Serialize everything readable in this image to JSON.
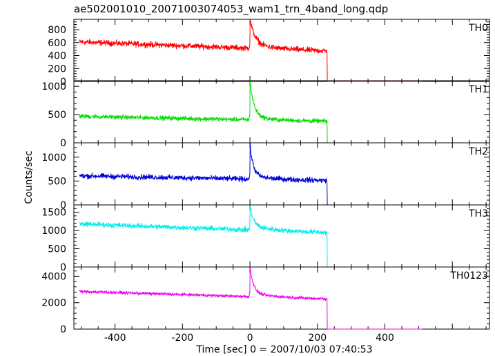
{
  "chart_data": {
    "type": "line",
    "title": "ae502001010_20071003074053_wam1_trn_4band_long.qdp",
    "xlabel": "Time [sec] 0 = 2007/10/03 07:40:53",
    "ylabel": "Counts/sec",
    "xlim": [
      -522,
      710
    ],
    "x_ticks": [
      -400,
      -200,
      0,
      200,
      400
    ],
    "grid": false,
    "legend": "none",
    "panels": [
      {
        "label": "TH0",
        "color": "#ff0000",
        "ylim": [
          0,
          960
        ],
        "y_ticks": [
          0,
          200,
          400,
          600,
          800
        ],
        "baseline_start": 610,
        "baseline_end": 470,
        "noise": 28,
        "peak": 900,
        "peak_decay": 15,
        "drop_time": 228,
        "end_level": 0,
        "x": [
          -505,
          -400,
          -300,
          -200,
          -100,
          -20,
          -1,
          3,
          10,
          20,
          40,
          80,
          150,
          225,
          228,
          232,
          400,
          510
        ],
        "y": [
          610,
          600,
          590,
          575,
          555,
          520,
          560,
          900,
          720,
          560,
          510,
          490,
          480,
          470,
          460,
          0,
          0,
          0
        ]
      },
      {
        "label": "TH1",
        "color": "#00dd00",
        "ylim": [
          0,
          1100
        ],
        "y_ticks": [
          0,
          500,
          1000
        ],
        "baseline_start": 470,
        "baseline_end": 380,
        "noise": 25,
        "peak": 1050,
        "peak_decay": 12,
        "drop_time": 228,
        "end_level": 0,
        "x": [
          -505,
          -400,
          -300,
          -200,
          -100,
          -20,
          -1,
          3,
          10,
          20,
          40,
          80,
          150,
          225,
          228,
          232,
          400,
          510
        ],
        "y": [
          470,
          460,
          450,
          440,
          430,
          415,
          500,
          1050,
          800,
          530,
          430,
          400,
          390,
          380,
          370,
          0,
          0,
          0
        ]
      },
      {
        "label": "TH2",
        "color": "#0000dd",
        "ylim": [
          0,
          1300
        ],
        "y_ticks": [
          0,
          500,
          1000
        ],
        "baseline_start": 610,
        "baseline_end": 510,
        "noise": 35,
        "peak": 1200,
        "peak_decay": 10,
        "drop_time": 228,
        "end_level": 0,
        "x": [
          -505,
          -400,
          -300,
          -200,
          -100,
          -20,
          -1,
          3,
          10,
          20,
          40,
          80,
          150,
          225,
          228,
          232,
          400,
          510
        ],
        "y": [
          610,
          605,
          600,
          595,
          580,
          570,
          620,
          1200,
          850,
          600,
          540,
          525,
          515,
          510,
          500,
          0,
          0,
          0
        ]
      },
      {
        "label": "TH3",
        "color": "#00eeee",
        "ylim": [
          0,
          1700
        ],
        "y_ticks": [
          0,
          500,
          1000,
          1500
        ],
        "baseline_start": 1180,
        "baseline_end": 940,
        "noise": 45,
        "peak": 1580,
        "peak_decay": 10,
        "drop_time": 228,
        "end_level": 0,
        "x": [
          -505,
          -400,
          -300,
          -200,
          -100,
          -20,
          -1,
          3,
          10,
          20,
          40,
          80,
          150,
          225,
          228,
          232,
          400,
          510
        ],
        "y": [
          1180,
          1160,
          1120,
          1090,
          1060,
          1040,
          1100,
          1580,
          1250,
          1060,
          1020,
          1000,
          970,
          940,
          920,
          0,
          0,
          0
        ]
      },
      {
        "label": "TH0123",
        "color": "#ee00ee",
        "ylim": [
          0,
          4700
        ],
        "y_ticks": [
          0,
          2000,
          4000
        ],
        "baseline_start": 2850,
        "baseline_end": 2280,
        "noise": 70,
        "peak": 4500,
        "peak_decay": 10,
        "drop_time": 228,
        "end_level": 0,
        "x": [
          -505,
          -400,
          -300,
          -200,
          -100,
          -20,
          -1,
          3,
          10,
          20,
          40,
          80,
          150,
          225,
          228,
          232,
          400,
          510
        ],
        "y": [
          2850,
          2800,
          2720,
          2650,
          2560,
          2500,
          2600,
          4500,
          3300,
          2550,
          2450,
          2400,
          2340,
          2280,
          2250,
          0,
          0,
          0
        ]
      }
    ]
  }
}
